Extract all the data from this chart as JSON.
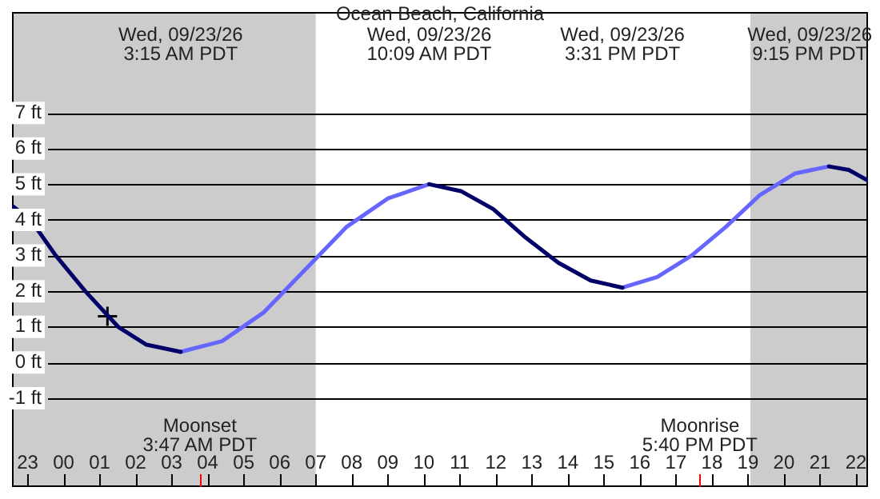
{
  "chart_data": {
    "type": "line",
    "title": "Ocean Beach, California",
    "xlim": [
      "--09-22T22:34",
      "--09-23T22:20"
    ],
    "ylim": [
      -3.49,
      9.83
    ],
    "xticks": [
      {
        "value": "--09-22T23:00",
        "label": "23"
      },
      {
        "value": "--09-23T00:00",
        "label": "00"
      },
      {
        "value": "--09-23T01:00",
        "label": "01"
      },
      {
        "value": "--09-23T02:00",
        "label": "02"
      },
      {
        "value": "--09-23T03:00",
        "label": "03"
      },
      {
        "value": "--09-23T03:47",
        "label": null
      },
      {
        "value": "--09-23T04:00",
        "label": "04"
      },
      {
        "value": "--09-23T05:00",
        "label": "05"
      },
      {
        "value": "--09-23T06:00",
        "label": "06"
      },
      {
        "value": "--09-23T07:00",
        "label": "07"
      },
      {
        "value": "--09-23T08:00",
        "label": "08"
      },
      {
        "value": "--09-23T09:00",
        "label": "09"
      },
      {
        "value": "--09-23T10:00",
        "label": "10"
      },
      {
        "value": "--09-23T11:00",
        "label": "11"
      },
      {
        "value": "--09-23T12:00",
        "label": "12"
      },
      {
        "value": "--09-23T13:00",
        "label": "13"
      },
      {
        "value": "--09-23T14:00",
        "label": "14"
      },
      {
        "value": "--09-23T15:00",
        "label": "15"
      },
      {
        "value": "--09-23T16:00",
        "label": "16"
      },
      {
        "value": "--09-23T17:00",
        "label": "17"
      },
      {
        "value": "--09-23T17:40",
        "label": null
      },
      {
        "value": "--09-23T18:00",
        "label": "18"
      },
      {
        "value": "--09-23T19:00",
        "label": "19"
      },
      {
        "value": "--09-23T20:00",
        "label": "20"
      },
      {
        "value": "--09-23T21:00",
        "label": "21"
      },
      {
        "value": "--09-23T22:00",
        "label": "22"
      }
    ],
    "yticks": [
      {
        "value": -1,
        "label": "-1 ft"
      },
      {
        "value": 0,
        "label": "0 ft"
      },
      {
        "value": 1,
        "label": "1 ft"
      },
      {
        "value": 2,
        "label": "2 ft"
      },
      {
        "value": 3,
        "label": "3 ft"
      },
      {
        "value": 4,
        "label": "4 ft"
      },
      {
        "value": 5,
        "label": "5 ft"
      },
      {
        "value": 6,
        "label": "6 ft"
      },
      {
        "value": 7,
        "label": "7 ft"
      }
    ],
    "grid": "y",
    "legend": false,
    "series": [
      {
        "type": "line",
        "color": "#000066",
        "marker": "none",
        "x": [
          "--09-22T22:34",
          "--09-22T23:05",
          "--09-22T23:47",
          "--09-23T00:36",
          "--09-23T01:31",
          "--09-23T02:18",
          "--09-23T03:15",
          "--09-23T06:42",
          "--09-23T10:09",
          "--09-23T11:03",
          "--09-23T11:56",
          "--09-23T12:50",
          "--09-23T13:44",
          "--09-23T14:38",
          "--09-23T15:31",
          "--09-23T18:23",
          "--09-23T21:15",
          "--09-23T21:48",
          "--09-23T22:20"
        ],
        "values": [
          4.4,
          4,
          3,
          2,
          1,
          0.5,
          0.3,
          null,
          5,
          4.8,
          4.3,
          3.5,
          2.8,
          2.3,
          2.1,
          null,
          5.5,
          5.4,
          5.1
        ]
      },
      {
        "type": "line",
        "color": "#6666ff",
        "marker": "none",
        "x": [
          "--09-23T03:15",
          "--09-23T04:24",
          "--09-23T05:33",
          "--09-23T06:42",
          "--09-23T07:51",
          "--09-23T09:00",
          "--09-23T10:09",
          "--09-23T12:50",
          "--09-23T15:31",
          "--09-23T16:29",
          "--09-23T17:26",
          "--09-23T18:23",
          "--09-23T19:20",
          "--09-23T20:18",
          "--09-23T21:15"
        ],
        "values": [
          0.3,
          0.6,
          1.4,
          2.6,
          3.8,
          4.6,
          5,
          null,
          2.1,
          2.4,
          3,
          3.8,
          4.7,
          5.3,
          5.5
        ]
      },
      {
        "type": "scatter",
        "color": "#000000",
        "marker": "cross",
        "x": [
          "--09-23T01:13"
        ],
        "values": [
          1.3
        ]
      }
    ],
    "bands": [
      {
        "axis": "x",
        "from": "--09-22T22:34",
        "to": "--09-23T07:00",
        "color": "#cccccc"
      },
      {
        "axis": "x",
        "from": "--09-23T19:04",
        "to": "--09-23T22:20",
        "color": "#cccccc"
      }
    ],
    "annotations": [
      "Wed, 09/23/26\n3:15 AM PDT",
      "Wed, 09/23/26\n10:09 AM PDT",
      "Wed, 09/23/26\n3:31 PM PDT",
      "Wed, 09/23/26\n9:15 PM PDT",
      "Moonset\n3:47 AM PDT",
      "Moonrise\n5:40 PM PDT"
    ]
  }
}
